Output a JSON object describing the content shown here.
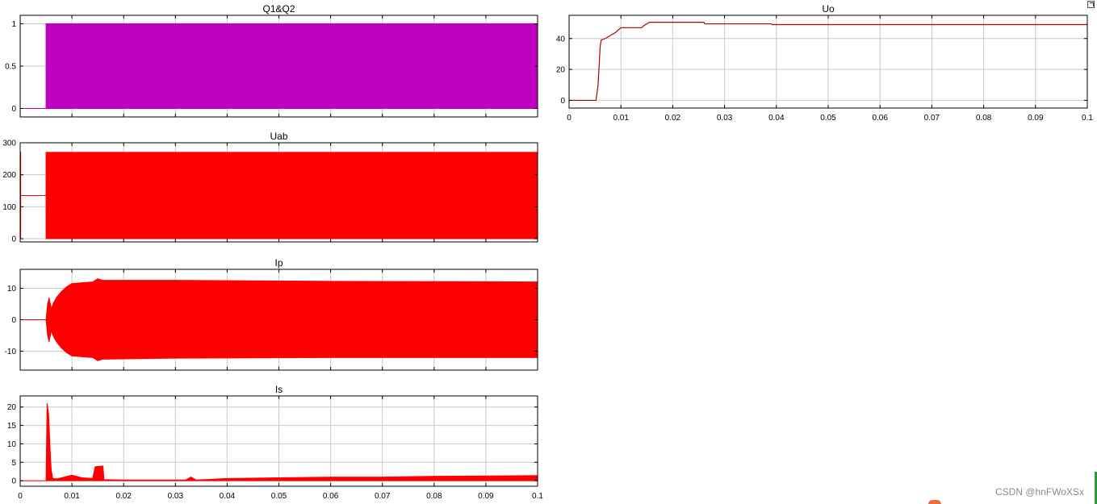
{
  "watermark": "CSDN @hnFWoXSx",
  "colors": {
    "gate": "#c000c0",
    "trace": "#ff0000",
    "uo": "#b00000",
    "grid": "#c8c8c8",
    "axes_bg": "#ffffff"
  },
  "chart_data": [
    {
      "id": "q1q2",
      "type": "line",
      "title": "Q1&Q2",
      "xlim": [
        0,
        0.1
      ],
      "ylim": [
        -0.1,
        1.1
      ],
      "yticks": [
        0,
        0.5,
        1
      ],
      "ytick_labels": [
        "0",
        "0.5",
        "1"
      ],
      "xticks": [
        0,
        0.01,
        0.02,
        0.03,
        0.04,
        0.05,
        0.06,
        0.07,
        0.08,
        0.09,
        0.1
      ],
      "xtick_labels": [],
      "grid": true,
      "series": [
        {
          "style": "band",
          "color": "#c000c0",
          "x": [
            0,
            0.005,
            0.005,
            0.1
          ],
          "upper": [
            0,
            0,
            1,
            1
          ],
          "lower": [
            0,
            0,
            0,
            0
          ]
        }
      ]
    },
    {
      "id": "uab",
      "type": "line",
      "title": "Uab",
      "xlim": [
        0,
        0.1
      ],
      "ylim": [
        -10,
        300
      ],
      "yticks": [
        0,
        100,
        200,
        300
      ],
      "ytick_labels": [
        "0",
        "100",
        "200",
        "300"
      ],
      "xticks": [
        0,
        0.01,
        0.02,
        0.03,
        0.04,
        0.05,
        0.06,
        0.07,
        0.08,
        0.09,
        0.1
      ],
      "xtick_labels": [],
      "grid": true,
      "series": [
        {
          "style": "band",
          "color": "#ff0000",
          "x": [
            0,
            0.0001,
            0.0001,
            0.005,
            0.005,
            0.1
          ],
          "upper": [
            270,
            270,
            135,
            135,
            270,
            270
          ],
          "lower": [
            0,
            0,
            135,
            135,
            0,
            0
          ]
        }
      ]
    },
    {
      "id": "ip",
      "type": "line",
      "title": "Ip",
      "xlim": [
        0,
        0.1
      ],
      "ylim": [
        -16,
        16
      ],
      "yticks": [
        -10,
        0,
        10
      ],
      "ytick_labels": [
        "-10",
        "0",
        "10"
      ],
      "xticks": [
        0,
        0.01,
        0.02,
        0.03,
        0.04,
        0.05,
        0.06,
        0.07,
        0.08,
        0.09,
        0.1
      ],
      "xtick_labels": [],
      "grid": true,
      "series": [
        {
          "style": "band",
          "color": "#ff0000",
          "x": [
            0,
            0.005,
            0.0053,
            0.0056,
            0.006,
            0.0065,
            0.007,
            0.0075,
            0.008,
            0.009,
            0.01,
            0.014,
            0.015,
            0.016,
            0.03,
            0.06,
            0.1
          ],
          "upper": [
            0,
            0,
            5,
            7,
            3.5,
            5.5,
            7,
            8,
            9,
            10.5,
            11.5,
            12,
            13,
            12.5,
            12.5,
            12.2,
            12
          ],
          "lower": [
            0,
            0,
            -5,
            -7,
            -3.5,
            -5.5,
            -7,
            -8,
            -9,
            -10.5,
            -11.5,
            -12,
            -13,
            -12.5,
            -12.2,
            -12,
            -12
          ]
        }
      ]
    },
    {
      "id": "is",
      "type": "line",
      "title": "Is",
      "xlim": [
        0,
        0.1
      ],
      "ylim": [
        -1.5,
        23
      ],
      "yticks": [
        0,
        5,
        10,
        15,
        20
      ],
      "ytick_labels": [
        "0",
        "5",
        "10",
        "15",
        "20"
      ],
      "xticks": [
        0,
        0.01,
        0.02,
        0.03,
        0.04,
        0.05,
        0.06,
        0.07,
        0.08,
        0.09,
        0.1
      ],
      "xtick_labels": [
        "0",
        "0.01",
        "0.02",
        "0.03",
        "0.04",
        "0.05",
        "0.06",
        "0.07",
        "0.08",
        "0.09",
        "0.1"
      ],
      "grid": true,
      "series": [
        {
          "style": "band",
          "color": "#ff0000",
          "x": [
            0,
            0.005,
            0.0052,
            0.0055,
            0.0058,
            0.006,
            0.0063,
            0.007,
            0.008,
            0.01,
            0.012,
            0.014,
            0.0145,
            0.016,
            0.0162,
            0.02,
            0.032,
            0.033,
            0.034,
            0.04,
            0.05,
            0.06,
            0.07,
            0.08,
            0.09,
            0.1
          ],
          "upper": [
            0,
            0,
            21,
            18,
            8,
            3,
            0.6,
            0.5,
            0.8,
            1.5,
            0.8,
            0.6,
            3.8,
            4,
            0.3,
            0.2,
            0.2,
            1,
            0.2,
            0.6,
            0.8,
            1,
            1,
            1.2,
            1.3,
            1.4
          ],
          "lower": [
            0,
            0,
            0,
            0,
            0,
            0,
            0,
            0,
            0,
            0,
            0,
            0,
            0,
            0,
            0,
            0,
            0,
            0,
            0,
            0,
            0,
            0,
            0,
            0,
            0,
            0
          ]
        }
      ]
    },
    {
      "id": "uo",
      "type": "line",
      "title": "Uo",
      "xlim": [
        0,
        0.1
      ],
      "ylim": [
        -5,
        55
      ],
      "yticks": [
        0,
        20,
        40
      ],
      "ytick_labels": [
        "0",
        "20",
        "40"
      ],
      "xticks": [
        0,
        0.01,
        0.02,
        0.03,
        0.04,
        0.05,
        0.06,
        0.07,
        0.08,
        0.09,
        0.1
      ],
      "xtick_labels": [
        "0",
        "0.01",
        "0.02",
        "0.03",
        "0.04",
        "0.05",
        "0.06",
        "0.07",
        "0.08",
        "0.09",
        "0.1"
      ],
      "grid": true,
      "series": [
        {
          "style": "line",
          "color": "#b00000",
          "x": [
            0,
            0.0052,
            0.0056,
            0.006,
            0.0062,
            0.007,
            0.0075,
            0.008,
            0.009,
            0.01,
            0.014,
            0.0145,
            0.0155,
            0.02,
            0.026,
            0.0262,
            0.039,
            0.0392,
            0.1
          ],
          "y": [
            0,
            0,
            10,
            35,
            39,
            40,
            41,
            42,
            44,
            47,
            47,
            48.5,
            50.5,
            50.5,
            50.5,
            49.5,
            49.5,
            49,
            49
          ]
        }
      ]
    }
  ]
}
